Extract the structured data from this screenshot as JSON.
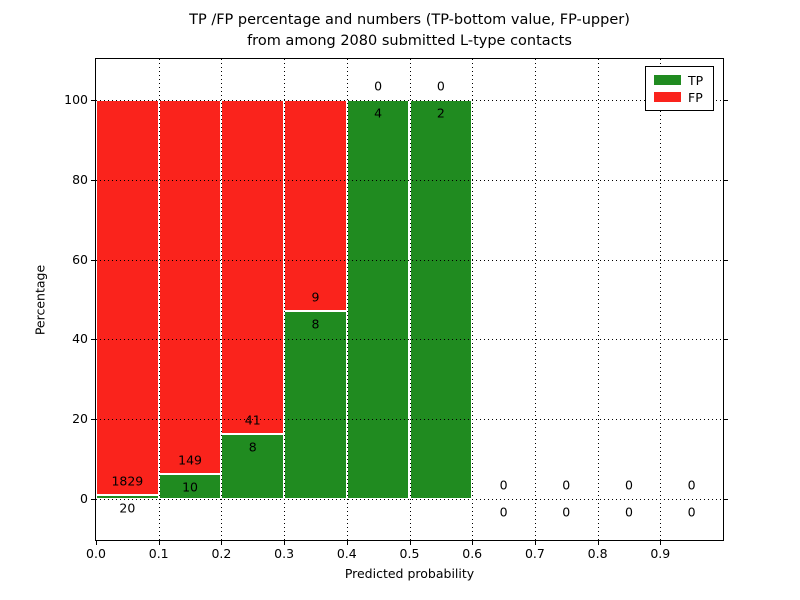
{
  "chart_data": {
    "type": "bar",
    "stacked": true,
    "title_line1": "TP /FP percentage and numbers (TP-bottom value, FP-upper)",
    "title_line2": "from among 2080 submitted L-type contacts",
    "xlabel": "Predicted probability",
    "ylabel": "Percentage",
    "xlim": [
      0.0,
      1.0
    ],
    "ylim": [
      -10.3,
      110.3
    ],
    "x_tick_labels": [
      "0.0",
      "0.1",
      "0.2",
      "0.3",
      "0.4",
      "0.5",
      "0.6",
      "0.7",
      "0.8",
      "0.9"
    ],
    "y_tick_values": [
      0,
      20,
      40,
      60,
      80,
      100
    ],
    "grid": "dotted",
    "bin_width": 0.1,
    "colors": {
      "tp": "#208b20",
      "fp": "#fa231c",
      "bar_edge": "#ffffff"
    },
    "legend": {
      "position": "upper-right",
      "entries": [
        {
          "label": "TP",
          "color": "#208b20"
        },
        {
          "label": "FP",
          "color": "#fa231c"
        }
      ]
    },
    "bins": [
      {
        "range": [
          0.0,
          0.1
        ],
        "tp_count": 20,
        "fp_count": 1829,
        "tp_pct": 1.08,
        "fp_pct": 98.92
      },
      {
        "range": [
          0.1,
          0.2
        ],
        "tp_count": 10,
        "fp_count": 149,
        "tp_pct": 6.29,
        "fp_pct": 93.71
      },
      {
        "range": [
          0.2,
          0.3
        ],
        "tp_count": 8,
        "fp_count": 41,
        "tp_pct": 16.33,
        "fp_pct": 83.67
      },
      {
        "range": [
          0.3,
          0.4
        ],
        "tp_count": 8,
        "fp_count": 9,
        "tp_pct": 47.06,
        "fp_pct": 52.94
      },
      {
        "range": [
          0.4,
          0.5
        ],
        "tp_count": 4,
        "fp_count": 0,
        "tp_pct": 100,
        "fp_pct": 0
      },
      {
        "range": [
          0.5,
          0.6
        ],
        "tp_count": 2,
        "fp_count": 0,
        "tp_pct": 100,
        "fp_pct": 0
      },
      {
        "range": [
          0.6,
          0.7
        ],
        "tp_count": 0,
        "fp_count": 0,
        "tp_pct": 0,
        "fp_pct": 0
      },
      {
        "range": [
          0.7,
          0.8
        ],
        "tp_count": 0,
        "fp_count": 0,
        "tp_pct": 0,
        "fp_pct": 0
      },
      {
        "range": [
          0.8,
          0.9
        ],
        "tp_count": 0,
        "fp_count": 0,
        "tp_pct": 0,
        "fp_pct": 0
      },
      {
        "range": [
          0.9,
          1.0
        ],
        "tp_count": 0,
        "fp_count": 0,
        "tp_pct": 0,
        "fp_pct": 0
      }
    ]
  }
}
